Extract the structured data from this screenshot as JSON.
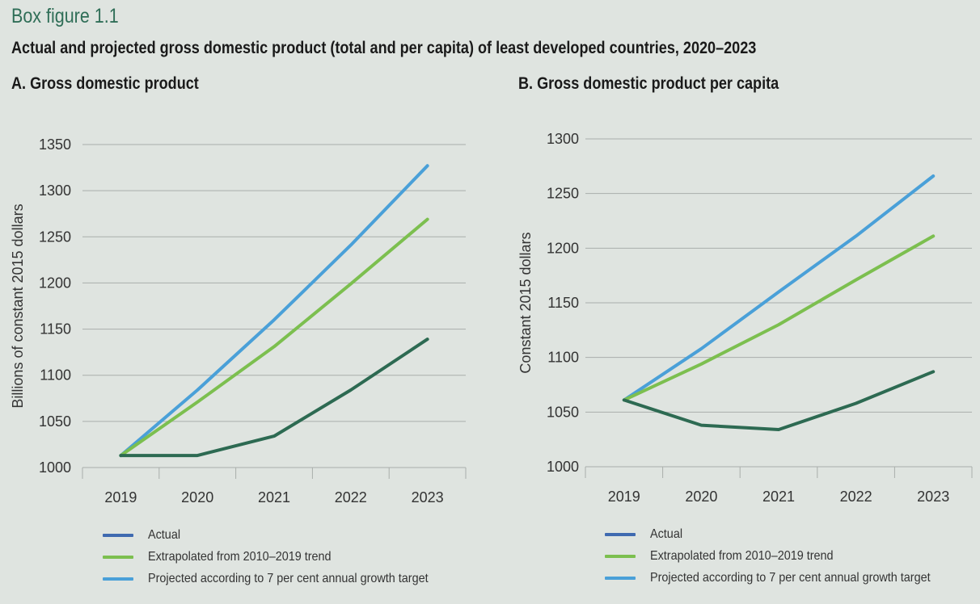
{
  "figure": {
    "label": "Box figure 1.1",
    "title": "Actual and projected gross domestic product (total and per capita) of least developed countries, 2020–2023"
  },
  "colors": {
    "actual": "#2d6a52",
    "actual_legend": "#3f6ab0",
    "extrapolated": "#7cbf4f",
    "projected": "#4aa0d8",
    "grid": "#a9aeab",
    "text": "#333333"
  },
  "legend": [
    {
      "key": "actual",
      "label": "Actual"
    },
    {
      "key": "extrapolated",
      "label": "Extrapolated from 2010–2019 trend"
    },
    {
      "key": "projected",
      "label": "Projected according to 7 per cent annual growth target"
    }
  ],
  "chart_data": [
    {
      "type": "line",
      "panel_title": "A. Gross domestic product",
      "ylabel": "Billions of constant  2015 dollars",
      "x": [
        "2019",
        "2020",
        "2021",
        "2022",
        "2023"
      ],
      "ylim": [
        1000,
        1350
      ],
      "yticks": [
        1000,
        1050,
        1100,
        1150,
        1200,
        1250,
        1300,
        1350
      ],
      "grid": true,
      "legend_position": "bottom",
      "series": [
        {
          "key": "actual",
          "name": "Actual",
          "values": [
            1013,
            1013,
            1034,
            1084,
            1139
          ]
        },
        {
          "key": "extrapolated",
          "name": "Extrapolated from 2010–2019 trend",
          "values": [
            1013,
            1071,
            1131,
            1199,
            1269
          ]
        },
        {
          "key": "projected",
          "name": "Projected according to 7 per cent annual growth target",
          "values": [
            1013,
            1084,
            1160,
            1241,
            1327
          ]
        }
      ]
    },
    {
      "type": "line",
      "panel_title": "B. Gross domestic product per capita",
      "ylabel": "Constant 2015 dollars",
      "x": [
        "2019",
        "2020",
        "2021",
        "2022",
        "2023"
      ],
      "ylim": [
        1000,
        1300
      ],
      "yticks": [
        1000,
        1050,
        1100,
        1150,
        1200,
        1250,
        1300
      ],
      "grid": true,
      "legend_position": "bottom",
      "series": [
        {
          "key": "actual",
          "name": "Actual",
          "values": [
            1061,
            1038,
            1034,
            1058,
            1087
          ]
        },
        {
          "key": "extrapolated",
          "name": "Extrapolated from 2010–2019 trend",
          "values": [
            1061,
            1094,
            1130,
            1171,
            1211
          ]
        },
        {
          "key": "projected",
          "name": "Projected according to 7 per cent annual growth target",
          "values": [
            1061,
            1108,
            1160,
            1211,
            1266
          ]
        }
      ]
    }
  ]
}
